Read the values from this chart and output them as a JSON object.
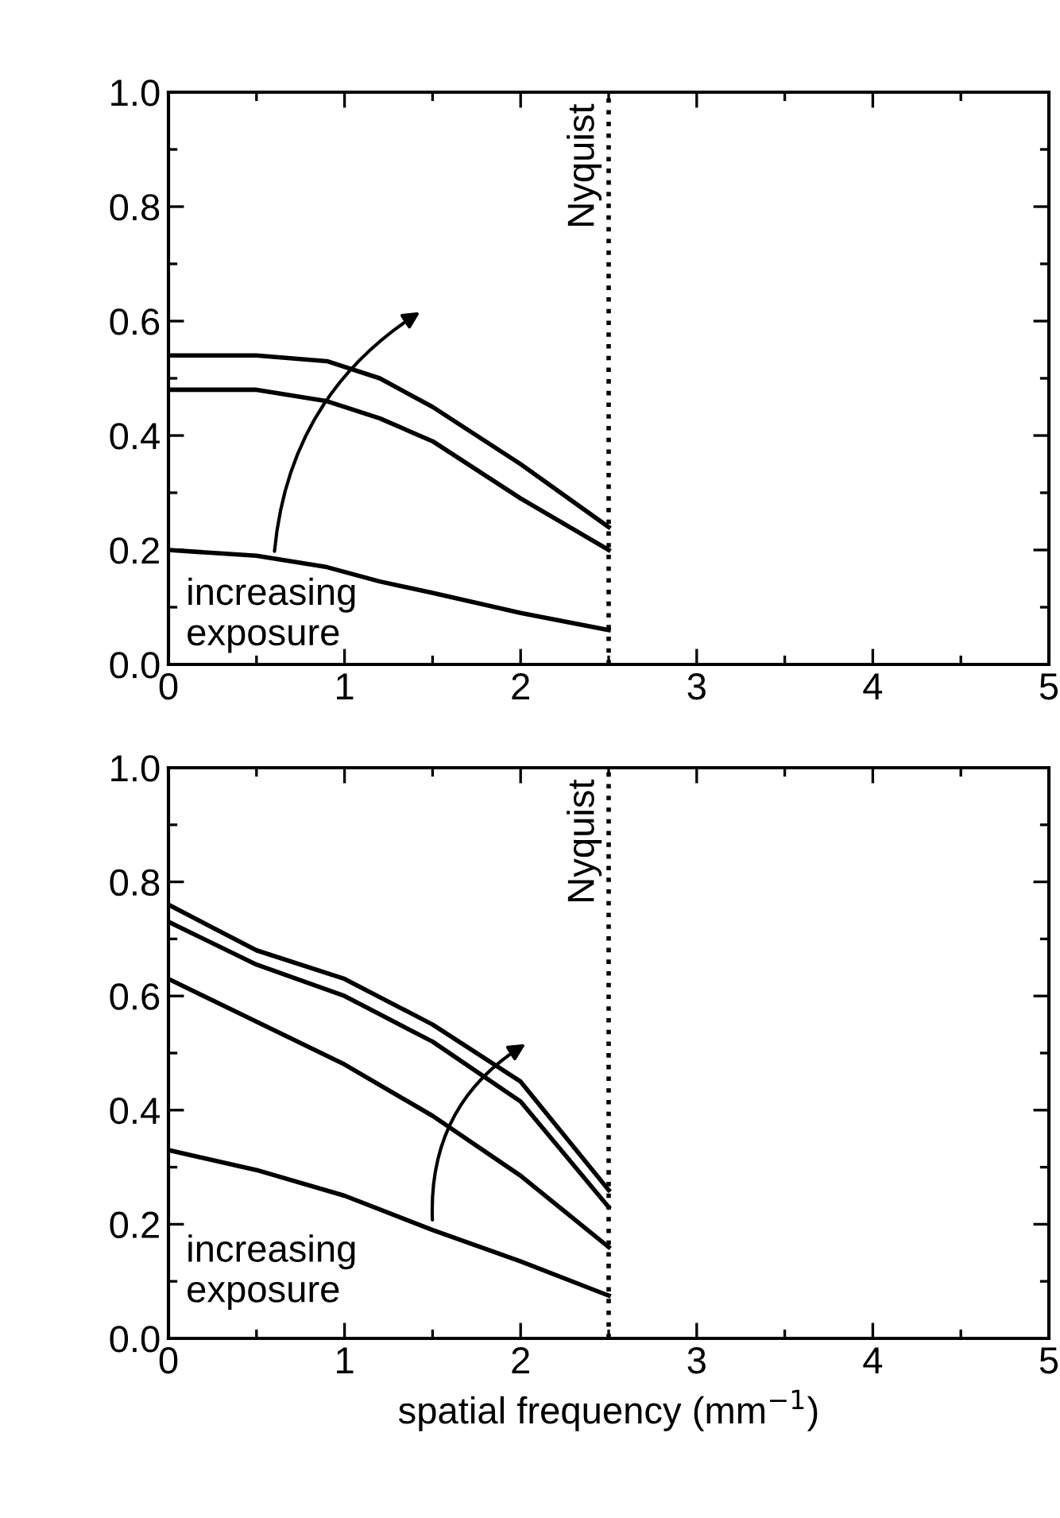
{
  "chart_data": [
    {
      "type": "line",
      "xlim": [
        0,
        5
      ],
      "xticks": [
        0,
        1,
        2,
        3,
        4,
        5
      ],
      "ylim": [
        0,
        1
      ],
      "yticks": [
        {
          "value": 0,
          "label": "0.0"
        },
        {
          "value": 0.2,
          "label": "0.2"
        },
        {
          "value": 0.4,
          "label": "0.4"
        },
        {
          "value": 0.6,
          "label": "0.6"
        },
        {
          "value": 0.8,
          "label": "0.8"
        },
        {
          "value": 1,
          "label": "1.0"
        }
      ],
      "grid": false,
      "marker": "none",
      "line_style": "solid",
      "x": [
        0,
        0.5,
        0.9,
        1.2,
        1.5,
        2,
        2.5
      ],
      "series": [
        {
          "color": "#000000",
          "values": [
            0.54,
            0.54,
            0.53,
            0.5,
            0.45,
            0.35,
            0.24
          ]
        },
        {
          "color": "#000000",
          "values": [
            0.48,
            0.48,
            0.46,
            0.43,
            0.39,
            0.29,
            0.2
          ]
        },
        {
          "color": "#000000",
          "values": [
            0.2,
            0.19,
            0.17,
            0.145,
            0.125,
            0.09,
            0.06
          ]
        }
      ],
      "ref_lines": [
        {
          "axis": "x",
          "value": 2.5,
          "label": "Nyquist",
          "color": "#000000",
          "line_style": "dotted"
        }
      ],
      "annotations": [
        "increasing\nexposure"
      ]
    },
    {
      "type": "line",
      "xlabel": "spatial frequency (mm$^{−1}$)",
      "xlim": [
        0,
        5
      ],
      "xticks": [
        0,
        1,
        2,
        3,
        4,
        5
      ],
      "ylim": [
        0,
        1
      ],
      "yticks": [
        {
          "value": 0,
          "label": "0.0"
        },
        {
          "value": 0.2,
          "label": "0.2"
        },
        {
          "value": 0.4,
          "label": "0.4"
        },
        {
          "value": 0.6,
          "label": "0.6"
        },
        {
          "value": 0.8,
          "label": "0.8"
        },
        {
          "value": 1,
          "label": "1.0"
        }
      ],
      "grid": false,
      "marker": "none",
      "line_style": "solid",
      "x": [
        0,
        0.5,
        1,
        1.5,
        2,
        2.5
      ],
      "series": [
        {
          "color": "#000000",
          "values": [
            0.76,
            0.68,
            0.63,
            0.55,
            0.45,
            0.26
          ]
        },
        {
          "color": "#000000",
          "values": [
            0.73,
            0.655,
            0.6,
            0.52,
            0.415,
            0.23
          ]
        },
        {
          "color": "#000000",
          "values": [
            0.63,
            0.555,
            0.48,
            0.39,
            0.285,
            0.16
          ]
        },
        {
          "color": "#000000",
          "values": [
            0.33,
            0.295,
            0.25,
            0.19,
            0.135,
            0.075
          ]
        }
      ],
      "ref_lines": [
        {
          "axis": "x",
          "value": 2.5,
          "label": "Nyquist",
          "color": "#000000",
          "line_style": "dotted"
        }
      ],
      "annotations": [
        "increasing\nexposure"
      ]
    }
  ]
}
